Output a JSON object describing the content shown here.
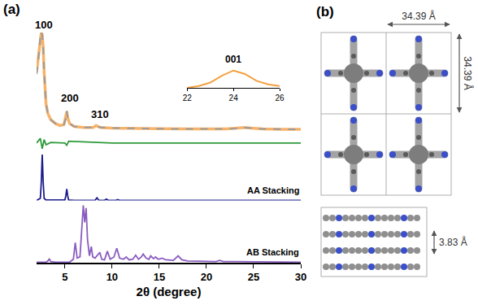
{
  "chart_data": [
    {
      "type": "line",
      "label": "(a)",
      "x_label": "2θ (degree)",
      "xlim": [
        2,
        30
      ],
      "xticks": [
        5,
        10,
        15,
        20,
        25,
        30
      ],
      "tick_labels": "x",
      "grid": false,
      "annotations": [
        {
          "text": "100",
          "x": 2.8,
          "y": 100
        },
        {
          "text": "200",
          "x": 5.5,
          "y": 26
        },
        {
          "text": "310",
          "x": 8.7,
          "y": 10
        }
      ],
      "stack": [
        {
          "ylim": [
            0,
            100
          ],
          "series": [
            {
              "color": "#f6b26b",
              "line_style": "solid",
              "x": [
                2.0,
                2.2,
                2.4,
                2.5,
                2.6,
                2.7,
                2.8,
                2.9,
                3.0,
                3.2,
                3.5,
                4.0,
                4.5,
                4.9,
                5.1,
                5.2,
                5.3,
                5.5,
                6.0,
                7.0,
                8.0,
                8.3,
                8.5,
                8.8,
                10,
                12,
                15,
                18,
                20,
                22,
                23,
                24,
                25,
                26,
                28,
                30
              ],
              "values": [
                60,
                75,
                95,
                100,
                98,
                85,
                60,
                40,
                28,
                18,
                12,
                8,
                6,
                7,
                14,
                20,
                14,
                8,
                5,
                4,
                4,
                6,
                5,
                4,
                3.5,
                3,
                2.8,
                2.6,
                2.5,
                2.6,
                3.2,
                4,
                3.2,
                2.6,
                2.3,
                2.2
              ]
            },
            {
              "color": "#9b9b9b",
              "line_style": "dashed",
              "x": [
                2.0,
                2.2,
                2.4,
                2.5,
                2.6,
                2.7,
                2.8,
                2.9,
                3.0,
                3.2,
                3.5,
                4.0,
                4.5,
                4.9,
                5.1,
                5.2,
                5.3,
                5.5,
                6.0,
                7.0,
                8.0,
                8.3,
                8.5,
                8.8,
                10,
                12,
                15,
                18,
                20,
                22,
                23,
                24,
                25,
                26,
                28,
                30
              ],
              "values": [
                58,
                74,
                96,
                101,
                97,
                84,
                61,
                41,
                27,
                18,
                12,
                8,
                6,
                7,
                13,
                21,
                13,
                8,
                5,
                4,
                4,
                6,
                5,
                4,
                3.5,
                3,
                2.8,
                2.6,
                2.5,
                2.6,
                3.1,
                3.9,
                3.2,
                2.6,
                2.3,
                2.2
              ]
            }
          ]
        },
        {
          "ylim": [
            -20,
            20
          ],
          "series": [
            {
              "color": "#2e9a3a",
              "line_style": "solid",
              "x": [
                2,
                2.4,
                2.6,
                2.8,
                3.0,
                3.5,
                5.0,
                5.2,
                5.4,
                8.4,
                10,
                20,
                30
              ],
              "values": [
                0,
                8,
                -10,
                6,
                -3,
                1,
                0,
                -4,
                3,
                1,
                0,
                0,
                0
              ]
            }
          ]
        },
        {
          "ylim": [
            0,
            100
          ],
          "series": [
            {
              "name": "AA Stacking",
              "color": "#1c1c8c",
              "line_style": "solid",
              "x": [
                2,
                2.4,
                2.5,
                2.6,
                2.7,
                2.8,
                3.0,
                4.0,
                5.0,
                5.1,
                5.2,
                5.3,
                5.4,
                6,
                8.2,
                8.4,
                8.6,
                9.2,
                9.4,
                9.6,
                10.4,
                10.6,
                10.8,
                15,
                20,
                24,
                30
              ],
              "values": [
                0,
                5,
                40,
                100,
                40,
                5,
                1,
                0.5,
                1,
                10,
                25,
                10,
                1,
                0.5,
                0.5,
                6,
                0.5,
                0.5,
                3,
                0.5,
                0.3,
                2,
                0.3,
                0.2,
                0.2,
                0.5,
                0.2
              ]
            }
          ]
        },
        {
          "ylim": [
            0,
            100
          ],
          "series": [
            {
              "name": "AB Stacking",
              "color": "#8a5cc0",
              "line_style": "solid",
              "x": [
                2,
                3.0,
                3.2,
                3.35,
                3.5,
                4,
                5.5,
                5.9,
                6.1,
                6.3,
                6.6,
                6.8,
                6.95,
                7.1,
                7.25,
                7.4,
                7.6,
                7.8,
                7.95,
                8.2,
                8.5,
                8.7,
                8.9,
                9.2,
                9.5,
                9.8,
                10.2,
                10.5,
                10.8,
                11.2,
                11.5,
                11.8,
                12.2,
                12.5,
                12.8,
                13.1,
                13.3,
                13.6,
                13.9,
                14.1,
                14.4,
                14.6,
                14.9,
                15.3,
                15.7,
                16.5,
                17.0,
                17.4,
                18,
                19,
                21,
                21.4,
                21.8,
                23,
                25,
                27,
                30
              ],
              "values": [
                1,
                1,
                3,
                7,
                2,
                1,
                1,
                6,
                35,
                8,
                10,
                60,
                100,
                70,
                95,
                40,
                12,
                28,
                10,
                8,
                14,
                18,
                6,
                5,
                20,
                6,
                10,
                25,
                8,
                6,
                10,
                5,
                6,
                13,
                6,
                10,
                15,
                8,
                6,
                12,
                7,
                10,
                6,
                8,
                5,
                4,
                12,
                5,
                3,
                3,
                2,
                4,
                2,
                2,
                1.5,
                1.5,
                1
              ]
            }
          ]
        }
      ]
    },
    {
      "type": "line",
      "title": "001",
      "xlim": [
        22,
        26
      ],
      "xticks": [
        22,
        24,
        26
      ],
      "ylim": [
        0,
        12
      ],
      "tick_labels": "x",
      "series": [
        {
          "color": "#f5a040",
          "line_style": "solid",
          "x": [
            22,
            22.5,
            23,
            23.5,
            24,
            24.5,
            25,
            25.5,
            26
          ],
          "values": [
            0,
            1,
            3,
            7,
            10,
            8,
            4,
            2,
            1
          ]
        }
      ]
    }
  ],
  "diagram": {
    "label": "(b)",
    "cell_a": "34.39 Å",
    "cell_b": "34.39 Å",
    "interlayer": "3.83 Å"
  }
}
